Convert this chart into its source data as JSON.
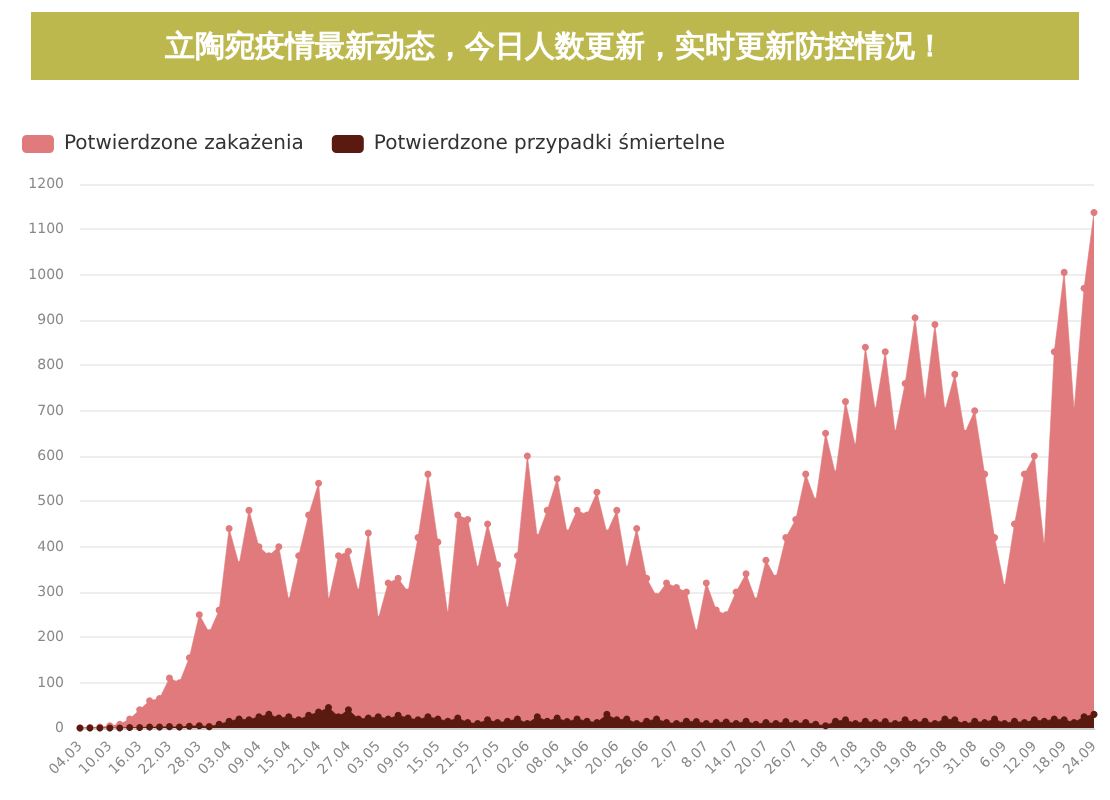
{
  "chart_data": {
    "type": "area",
    "title": "立陶宛疫情最新动态，今日人数更新，实时更新防控情况！",
    "categories": [
      "04.03",
      null,
      null,
      "10.03",
      null,
      null,
      "16.03",
      null,
      null,
      "22.03",
      null,
      null,
      "28.03",
      null,
      null,
      "03.04",
      null,
      null,
      "09.04",
      null,
      null,
      "15.04",
      null,
      null,
      "21.04",
      null,
      null,
      "27.04",
      null,
      null,
      "03.05",
      null,
      null,
      "09.05",
      null,
      null,
      "15.05",
      null,
      null,
      "21.05",
      null,
      null,
      "27.05",
      null,
      null,
      "02.06",
      null,
      null,
      "08.06",
      null,
      null,
      "14.06",
      null,
      null,
      "20.06",
      null,
      null,
      "26.06",
      null,
      null,
      "2.07",
      null,
      null,
      "8.07",
      null,
      null,
      "14.07",
      null,
      null,
      "20.07",
      null,
      null,
      "26.07",
      null,
      null,
      "1.08",
      null,
      null,
      "7.08",
      null,
      null,
      "13.08",
      null,
      null,
      "19.08",
      null,
      null,
      "25.08",
      null,
      null,
      "31.08",
      null,
      null,
      "6.09",
      null,
      null,
      "12.09",
      null,
      null,
      "18.09",
      null,
      null,
      "24.09"
    ],
    "series": [
      {
        "name": "Potwierdzone zakażenia",
        "color": "#e07a7c",
        "values": [
          0,
          1,
          2,
          5,
          8,
          20,
          40,
          60,
          65,
          110,
          100,
          155,
          250,
          210,
          260,
          440,
          360,
          480,
          400,
          380,
          400,
          280,
          380,
          470,
          540,
          280,
          380,
          390,
          300,
          430,
          240,
          320,
          330,
          300,
          420,
          560,
          410,
          250,
          470,
          460,
          350,
          450,
          360,
          260,
          380,
          600,
          420,
          480,
          550,
          430,
          480,
          470,
          520,
          430,
          480,
          350,
          440,
          330,
          290,
          320,
          310,
          300,
          210,
          320,
          260,
          250,
          300,
          340,
          280,
          370,
          330,
          420,
          460,
          560,
          500,
          650,
          560,
          720,
          620,
          840,
          700,
          830,
          650,
          760,
          905,
          720,
          890,
          700,
          780,
          650,
          700,
          560,
          420,
          310,
          450,
          560,
          600,
          400,
          830,
          1005,
          700,
          970,
          1137
        ]
      },
      {
        "name": "Potwierdzone przypadki śmiertelne",
        "color": "#5a1a10",
        "values": [
          0,
          0,
          0,
          0,
          0,
          1,
          1,
          2,
          2,
          3,
          2,
          4,
          5,
          3,
          8,
          15,
          20,
          18,
          25,
          30,
          22,
          25,
          18,
          28,
          35,
          45,
          25,
          40,
          20,
          22,
          25,
          20,
          28,
          22,
          18,
          25,
          20,
          15,
          22,
          12,
          10,
          18,
          12,
          15,
          20,
          10,
          25,
          15,
          22,
          14,
          20,
          15,
          12,
          30,
          18,
          20,
          10,
          15,
          20,
          12,
          10,
          15,
          14,
          10,
          12,
          13,
          10,
          15,
          8,
          12,
          10,
          14,
          10,
          12,
          8,
          5,
          15,
          18,
          10,
          15,
          12,
          14,
          10,
          18,
          12,
          15,
          10,
          20,
          18,
          8,
          15,
          12,
          20,
          10,
          15,
          12,
          18,
          15,
          20,
          18,
          12,
          25,
          30
        ]
      }
    ],
    "ylim": [
      0,
      1200
    ],
    "yticks": [
      0,
      100,
      200,
      300,
      400,
      500,
      600,
      700,
      800,
      900,
      1000,
      1100,
      1200
    ],
    "grid": "y",
    "legend": "top left",
    "marker": "circle"
  }
}
